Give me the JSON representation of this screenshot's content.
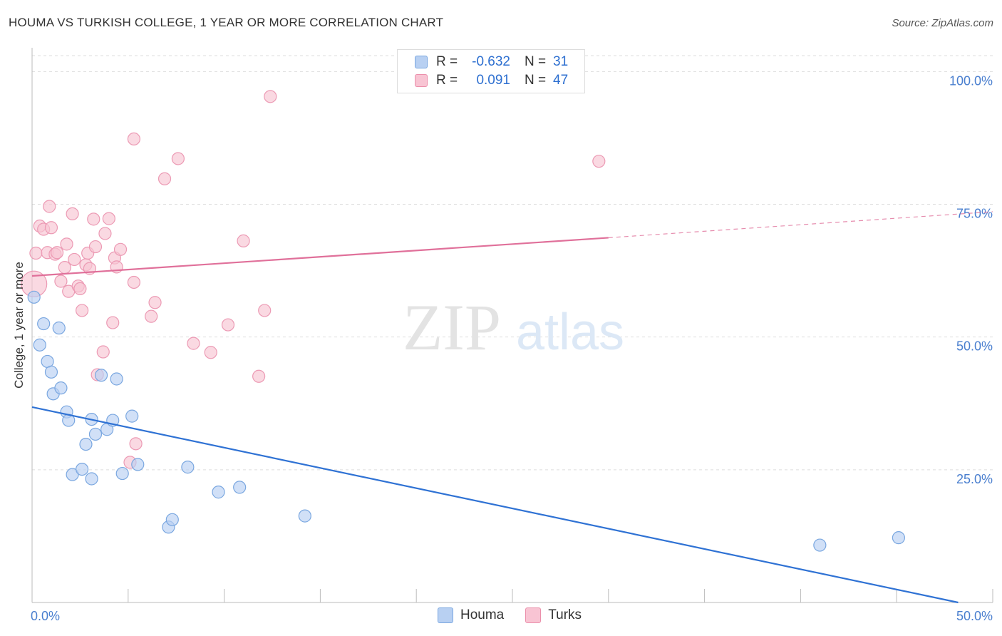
{
  "header": {
    "title": "HOUMA VS TURKISH COLLEGE, 1 YEAR OR MORE CORRELATION CHART",
    "source": "Source: ZipAtlas.com"
  },
  "watermark": {
    "zip": "ZIP",
    "atlas": "atlas"
  },
  "legend": {
    "rows": [
      {
        "r_label": "R =",
        "r_value": "-0.632",
        "n_label": "N =",
        "n_value": "31"
      },
      {
        "r_label": "R =",
        "r_value": "0.091",
        "n_label": "N =",
        "n_value": "47"
      }
    ]
  },
  "chart_data": {
    "type": "scatter",
    "title": "HOUMA VS TURKISH COLLEGE, 1 YEAR OR MORE CORRELATION CHART",
    "xlabel": "",
    "ylabel": "College, 1 year or more",
    "xlim": [
      0,
      50
    ],
    "ylim": [
      0,
      103
    ],
    "x_tick_labels": [
      "0.0%",
      "50.0%"
    ],
    "y_ticks": [
      25,
      50,
      75,
      100
    ],
    "y_tick_labels": [
      "25.0%",
      "50.0%",
      "75.0%",
      "100.0%"
    ],
    "grid": true,
    "colors": {
      "houma": "#5b9be0",
      "turks": "#f095b2",
      "houma_line": "#2f72d4",
      "turks_line": "#e0709a",
      "tick_text": "#4a7fcf"
    },
    "series": [
      {
        "name": "Houma",
        "r": -0.632,
        "n": 31,
        "trend": {
          "x": [
            0,
            48.2
          ],
          "y": [
            36.8,
            0
          ]
        },
        "points": [
          {
            "x": 0.1,
            "y": 57.5
          },
          {
            "x": 0.4,
            "y": 48.5
          },
          {
            "x": 0.6,
            "y": 52.5
          },
          {
            "x": 0.8,
            "y": 45.4
          },
          {
            "x": 1.0,
            "y": 43.4
          },
          {
            "x": 1.1,
            "y": 39.3
          },
          {
            "x": 1.4,
            "y": 51.7
          },
          {
            "x": 1.5,
            "y": 40.4
          },
          {
            "x": 1.8,
            "y": 35.9
          },
          {
            "x": 1.9,
            "y": 34.3
          },
          {
            "x": 2.1,
            "y": 24.1
          },
          {
            "x": 2.6,
            "y": 25.1
          },
          {
            "x": 2.8,
            "y": 29.8
          },
          {
            "x": 3.1,
            "y": 34.5
          },
          {
            "x": 3.1,
            "y": 23.3
          },
          {
            "x": 3.3,
            "y": 31.7
          },
          {
            "x": 3.6,
            "y": 42.8
          },
          {
            "x": 3.9,
            "y": 32.6
          },
          {
            "x": 4.2,
            "y": 34.3
          },
          {
            "x": 4.4,
            "y": 42.1
          },
          {
            "x": 4.7,
            "y": 24.3
          },
          {
            "x": 5.2,
            "y": 35.1
          },
          {
            "x": 5.5,
            "y": 26.0
          },
          {
            "x": 7.1,
            "y": 14.2
          },
          {
            "x": 7.3,
            "y": 15.6
          },
          {
            "x": 8.1,
            "y": 25.5
          },
          {
            "x": 9.7,
            "y": 20.8
          },
          {
            "x": 10.8,
            "y": 21.7
          },
          {
            "x": 14.2,
            "y": 16.3
          },
          {
            "x": 41.0,
            "y": 10.8
          },
          {
            "x": 45.1,
            "y": 12.2
          }
        ]
      },
      {
        "name": "Turks",
        "r": 0.091,
        "n": 47,
        "trend": {
          "x": [
            0,
            30
          ],
          "y": [
            61.5,
            68.7
          ]
        },
        "trend_extension": {
          "x": [
            30,
            50
          ],
          "y": [
            68.7,
            73.6
          ]
        },
        "points": [
          {
            "x": 0.1,
            "y": 60.0
          },
          {
            "x": 0.2,
            "y": 65.8
          },
          {
            "x": 0.4,
            "y": 70.9
          },
          {
            "x": 0.6,
            "y": 70.3
          },
          {
            "x": 0.8,
            "y": 65.9
          },
          {
            "x": 0.9,
            "y": 74.6
          },
          {
            "x": 1.0,
            "y": 70.6
          },
          {
            "x": 1.2,
            "y": 65.6
          },
          {
            "x": 1.3,
            "y": 65.9
          },
          {
            "x": 1.5,
            "y": 60.5
          },
          {
            "x": 1.7,
            "y": 63.1
          },
          {
            "x": 1.8,
            "y": 67.5
          },
          {
            "x": 1.9,
            "y": 58.6
          },
          {
            "x": 2.1,
            "y": 73.2
          },
          {
            "x": 2.2,
            "y": 64.6
          },
          {
            "x": 2.4,
            "y": 59.6
          },
          {
            "x": 2.5,
            "y": 59.1
          },
          {
            "x": 2.6,
            "y": 55.0
          },
          {
            "x": 2.8,
            "y": 63.6
          },
          {
            "x": 2.9,
            "y": 65.8
          },
          {
            "x": 3.0,
            "y": 62.9
          },
          {
            "x": 3.2,
            "y": 72.2
          },
          {
            "x": 3.3,
            "y": 67.0
          },
          {
            "x": 3.4,
            "y": 42.9
          },
          {
            "x": 3.7,
            "y": 47.2
          },
          {
            "x": 3.8,
            "y": 69.5
          },
          {
            "x": 4.0,
            "y": 72.3
          },
          {
            "x": 4.2,
            "y": 52.7
          },
          {
            "x": 4.3,
            "y": 64.9
          },
          {
            "x": 4.4,
            "y": 63.2
          },
          {
            "x": 4.6,
            "y": 66.5
          },
          {
            "x": 5.1,
            "y": 26.4
          },
          {
            "x": 5.3,
            "y": 60.3
          },
          {
            "x": 5.4,
            "y": 29.9
          },
          {
            "x": 5.3,
            "y": 87.3
          },
          {
            "x": 6.2,
            "y": 53.9
          },
          {
            "x": 6.4,
            "y": 56.5
          },
          {
            "x": 6.9,
            "y": 79.8
          },
          {
            "x": 7.6,
            "y": 83.6
          },
          {
            "x": 8.4,
            "y": 48.8
          },
          {
            "x": 9.3,
            "y": 47.1
          },
          {
            "x": 10.2,
            "y": 52.3
          },
          {
            "x": 11.0,
            "y": 68.1
          },
          {
            "x": 11.8,
            "y": 42.6
          },
          {
            "x": 12.1,
            "y": 55.0
          },
          {
            "x": 12.4,
            "y": 95.3
          },
          {
            "x": 29.5,
            "y": 83.1
          }
        ]
      }
    ]
  }
}
